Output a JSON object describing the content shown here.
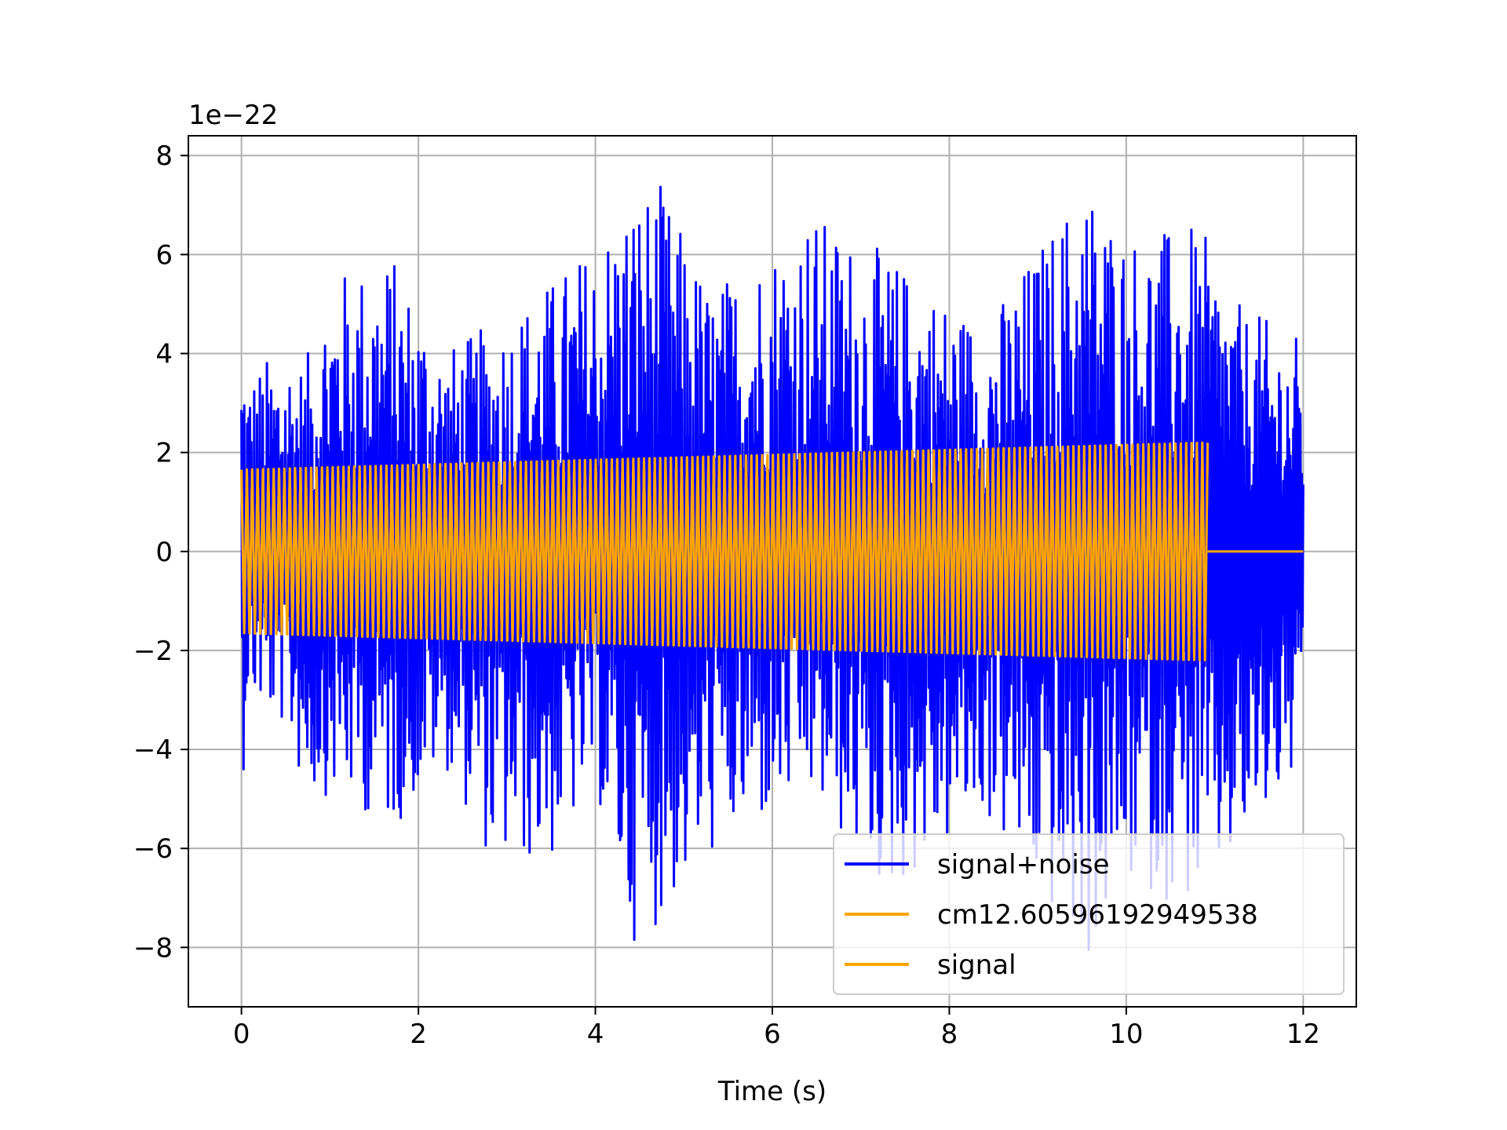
{
  "chart_data": {
    "type": "line",
    "title": "",
    "xlabel": "Time (s)",
    "ylabel": "",
    "y_offset_label": "1e−22",
    "xlim": [
      -0.6,
      12.6
    ],
    "ylim": [
      -9.2,
      8.4
    ],
    "x_ticks": [
      0,
      2,
      4,
      6,
      8,
      10,
      12
    ],
    "x_tick_labels": [
      "0",
      "2",
      "4",
      "6",
      "8",
      "10",
      "12"
    ],
    "y_ticks": [
      8,
      6,
      4,
      2,
      0,
      -2,
      -4,
      -6,
      -8
    ],
    "y_tick_labels": [
      "8",
      "6",
      "4",
      "2",
      "0",
      "−2",
      "−4",
      "−6",
      "−8"
    ],
    "grid": true,
    "legend_position": "lower-right",
    "series": [
      {
        "name": "signal+noise",
        "color": "#0000ff",
        "t_start": 0,
        "t_end": 12,
        "envelope_note": "dense noisy oscillation, peaks reach about +7.6 and -8.4",
        "peaks": [
          [
            0.05,
            3.6,
            -3.0
          ],
          [
            0.5,
            4.2,
            -3.6
          ],
          [
            0.72,
            3.8,
            -5.0
          ],
          [
            1.0,
            5.6,
            -4.9
          ],
          [
            1.7,
            6.0,
            -5.6
          ],
          [
            2.3,
            4.1,
            -4.3
          ],
          [
            2.85,
            4.6,
            -6.4
          ],
          [
            3.5,
            5.5,
            -6.3
          ],
          [
            4.0,
            6.3,
            -4.8
          ],
          [
            4.4,
            7.3,
            -7.9
          ],
          [
            4.7,
            7.5,
            -7.5
          ],
          [
            5.3,
            5.3,
            -6.2
          ],
          [
            6.4,
            6.9,
            -5.0
          ],
          [
            7.3,
            6.0,
            -7.0
          ],
          [
            8.4,
            4.6,
            -5.4
          ],
          [
            9.55,
            7.6,
            -8.4
          ],
          [
            10.0,
            6.5,
            -6.8
          ],
          [
            10.85,
            6.5,
            -7.2
          ],
          [
            11.3,
            4.9,
            -6.2
          ],
          [
            12.0,
            4.3,
            -4.4
          ]
        ]
      },
      {
        "name": "cm12.60596192949538",
        "color": "#ffa500",
        "note": "second orange series in legend, overlapping the signal",
        "t_start": 0,
        "t_end": 10.92,
        "amplitude_start": 1.65,
        "amplitude_end": 2.2
      },
      {
        "name": "signal",
        "color": "#ffa500",
        "t_start": 0,
        "t_end": 10.92,
        "amplitude_start": 1.65,
        "amplitude_end": 2.2,
        "after_end_value": 0,
        "after_end_range": [
          10.92,
          12
        ]
      }
    ]
  }
}
